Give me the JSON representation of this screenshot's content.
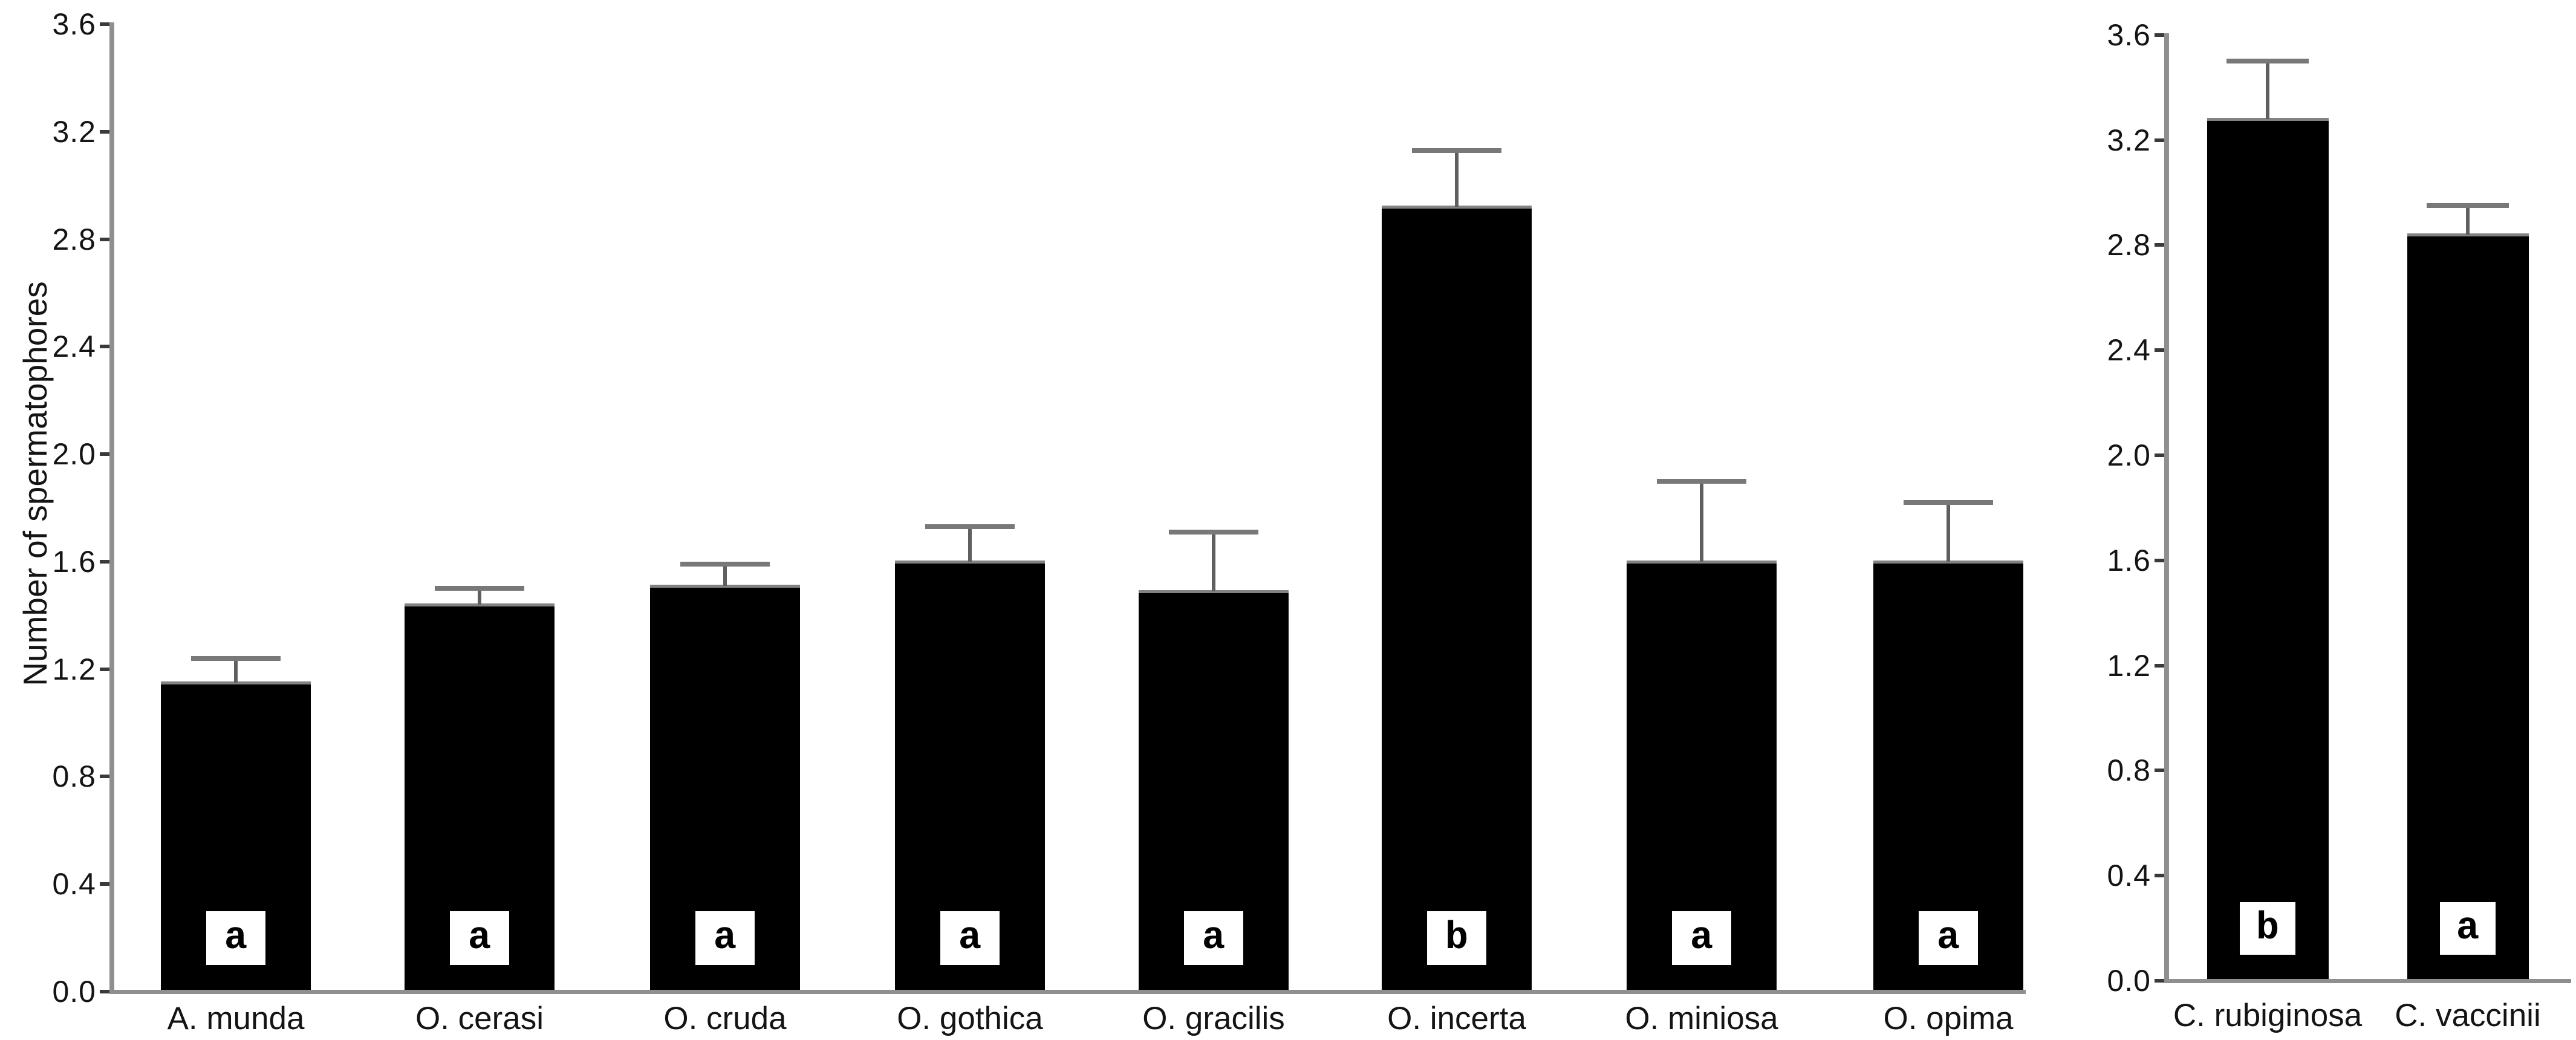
{
  "figure": {
    "ylabel": "Number of spermatophores",
    "background": "#ffffff"
  },
  "colors": {
    "bar": "#000000",
    "bar_top_edge": "#828282",
    "error_bar": "#5f5f5f",
    "error_cap": "#787878",
    "axis_line": "#8f8f8f",
    "tick_mark": "#3a3a3a",
    "text": "#141414",
    "letter_box_bg": "#ffffff",
    "letter_text": "#000000"
  },
  "chart_data": [
    {
      "type": "bar",
      "panel": "left",
      "title": "",
      "xlabel": "",
      "ylabel": "Number of spermatophores",
      "ylim": [
        0.0,
        3.6
      ],
      "ytick_step": 0.4,
      "ytick_labels": [
        "0.0",
        "0.4",
        "0.8",
        "1.2",
        "1.6",
        "2.0",
        "2.4",
        "2.8",
        "3.2",
        "3.6"
      ],
      "grid": false,
      "legend": false,
      "categories": [
        "A. munda",
        "O. cerasi",
        "O. cruda",
        "O. gothica",
        "O. gracilis",
        "O. incerta",
        "O. miniosa",
        "O. opima"
      ],
      "values": [
        1.15,
        1.44,
        1.51,
        1.6,
        1.49,
        2.92,
        1.6,
        1.6
      ],
      "error_upper_caps": [
        1.24,
        1.5,
        1.59,
        1.73,
        1.71,
        3.13,
        1.9,
        1.82
      ],
      "sig_letters": [
        "a",
        "a",
        "a",
        "a",
        "a",
        "b",
        "a",
        "a"
      ]
    },
    {
      "type": "bar",
      "panel": "right",
      "title": "",
      "xlabel": "",
      "ylabel": "",
      "ylim": [
        0.0,
        3.6
      ],
      "ytick_step": 0.4,
      "ytick_labels": [
        "0.0",
        "0.4",
        "0.8",
        "1.2",
        "1.6",
        "2.0",
        "2.4",
        "2.8",
        "3.2",
        "3.6"
      ],
      "grid": false,
      "legend": false,
      "categories": [
        "C. rubiginosa",
        "C. vaccinii"
      ],
      "values": [
        3.28,
        2.84
      ],
      "error_upper_caps": [
        3.5,
        2.95
      ],
      "sig_letters": [
        "b",
        "a"
      ]
    }
  ]
}
